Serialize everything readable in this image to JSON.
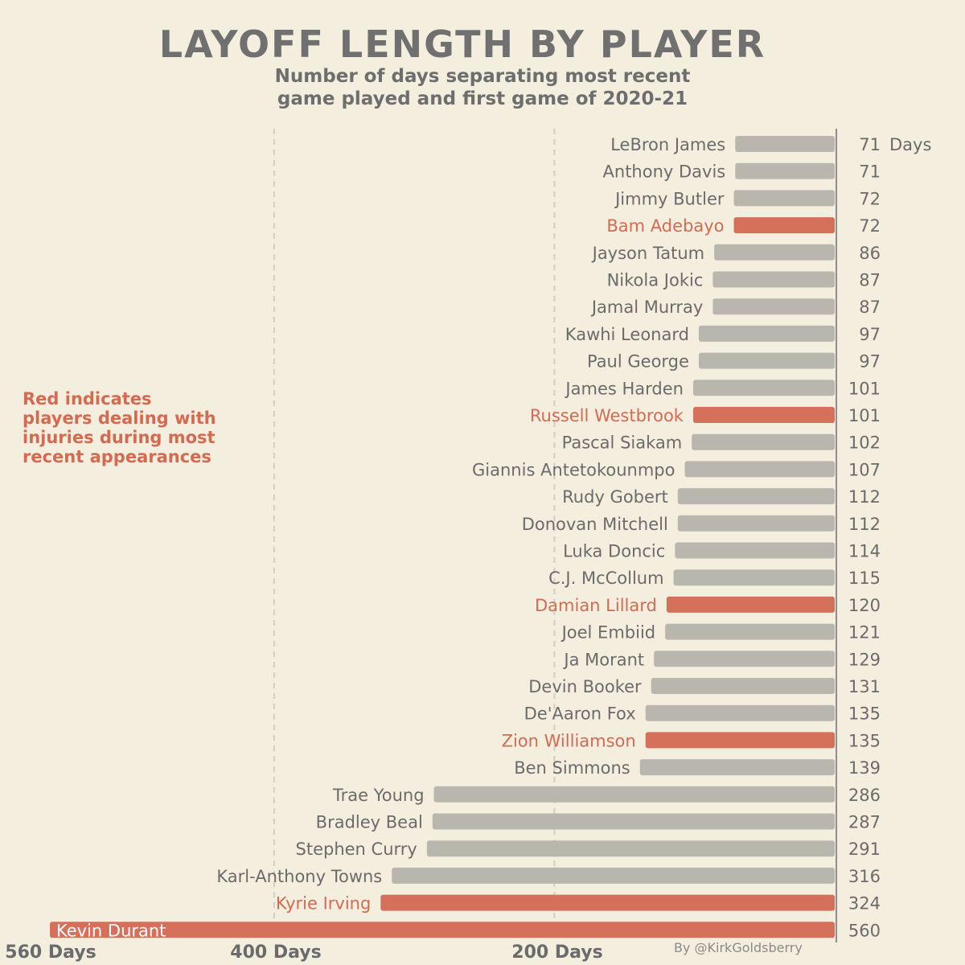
{
  "chart_data": {
    "type": "bar",
    "orientation": "horizontal",
    "title": "LAYOFF LENGTH BY PLAYER",
    "subtitle": [
      "Number of days separating most recent",
      "game played and first game of 2020-21"
    ],
    "value_unit": "Days",
    "annotation": [
      "Red indicates",
      "players dealing with",
      "injuries during most",
      "recent appearances"
    ],
    "credit": "By @KirkGoldsberry",
    "x_tick_labels": [
      "560 Days",
      "400 Days",
      "200 Days"
    ],
    "x_ticks": [
      560,
      400,
      200
    ],
    "gridlines": [
      400,
      200
    ],
    "xlim": [
      0,
      560
    ],
    "colors": {
      "default": "#b9b6ae",
      "injured": "#d5705a",
      "label": "#6b6b6b",
      "injured_label": "#d56a52"
    },
    "players": [
      {
        "name": "LeBron James",
        "value": 71,
        "injured": false
      },
      {
        "name": "Anthony Davis",
        "value": 71,
        "injured": false
      },
      {
        "name": "Jimmy Butler",
        "value": 72,
        "injured": false
      },
      {
        "name": "Bam Adebayo",
        "value": 72,
        "injured": true
      },
      {
        "name": "Jayson Tatum",
        "value": 86,
        "injured": false
      },
      {
        "name": "Nikola Jokic",
        "value": 87,
        "injured": false
      },
      {
        "name": "Jamal Murray",
        "value": 87,
        "injured": false
      },
      {
        "name": "Kawhi Leonard",
        "value": 97,
        "injured": false
      },
      {
        "name": "Paul George",
        "value": 97,
        "injured": false
      },
      {
        "name": "James Harden",
        "value": 101,
        "injured": false
      },
      {
        "name": "Russell Westbrook",
        "value": 101,
        "injured": true
      },
      {
        "name": "Pascal Siakam",
        "value": 102,
        "injured": false
      },
      {
        "name": "Giannis Antetokounmpo",
        "value": 107,
        "injured": false
      },
      {
        "name": "Rudy Gobert",
        "value": 112,
        "injured": false
      },
      {
        "name": "Donovan Mitchell",
        "value": 112,
        "injured": false
      },
      {
        "name": "Luka Doncic",
        "value": 114,
        "injured": false
      },
      {
        "name": "C.J. McCollum",
        "value": 115,
        "injured": false
      },
      {
        "name": "Damian Lillard",
        "value": 120,
        "injured": true
      },
      {
        "name": "Joel Embiid",
        "value": 121,
        "injured": false
      },
      {
        "name": "Ja Morant",
        "value": 129,
        "injured": false
      },
      {
        "name": "Devin Booker",
        "value": 131,
        "injured": false
      },
      {
        "name": "De'Aaron Fox",
        "value": 135,
        "injured": false
      },
      {
        "name": "Zion Williamson",
        "value": 135,
        "injured": true
      },
      {
        "name": "Ben Simmons",
        "value": 139,
        "injured": false
      },
      {
        "name": "Trae Young",
        "value": 286,
        "injured": false
      },
      {
        "name": "Bradley Beal",
        "value": 287,
        "injured": false
      },
      {
        "name": "Stephen Curry",
        "value": 291,
        "injured": false
      },
      {
        "name": "Karl-Anthony Towns",
        "value": 316,
        "injured": false
      },
      {
        "name": "Kyrie Irving",
        "value": 324,
        "injured": true
      },
      {
        "name": "Kevin Durant",
        "value": 560,
        "injured": true
      }
    ]
  }
}
